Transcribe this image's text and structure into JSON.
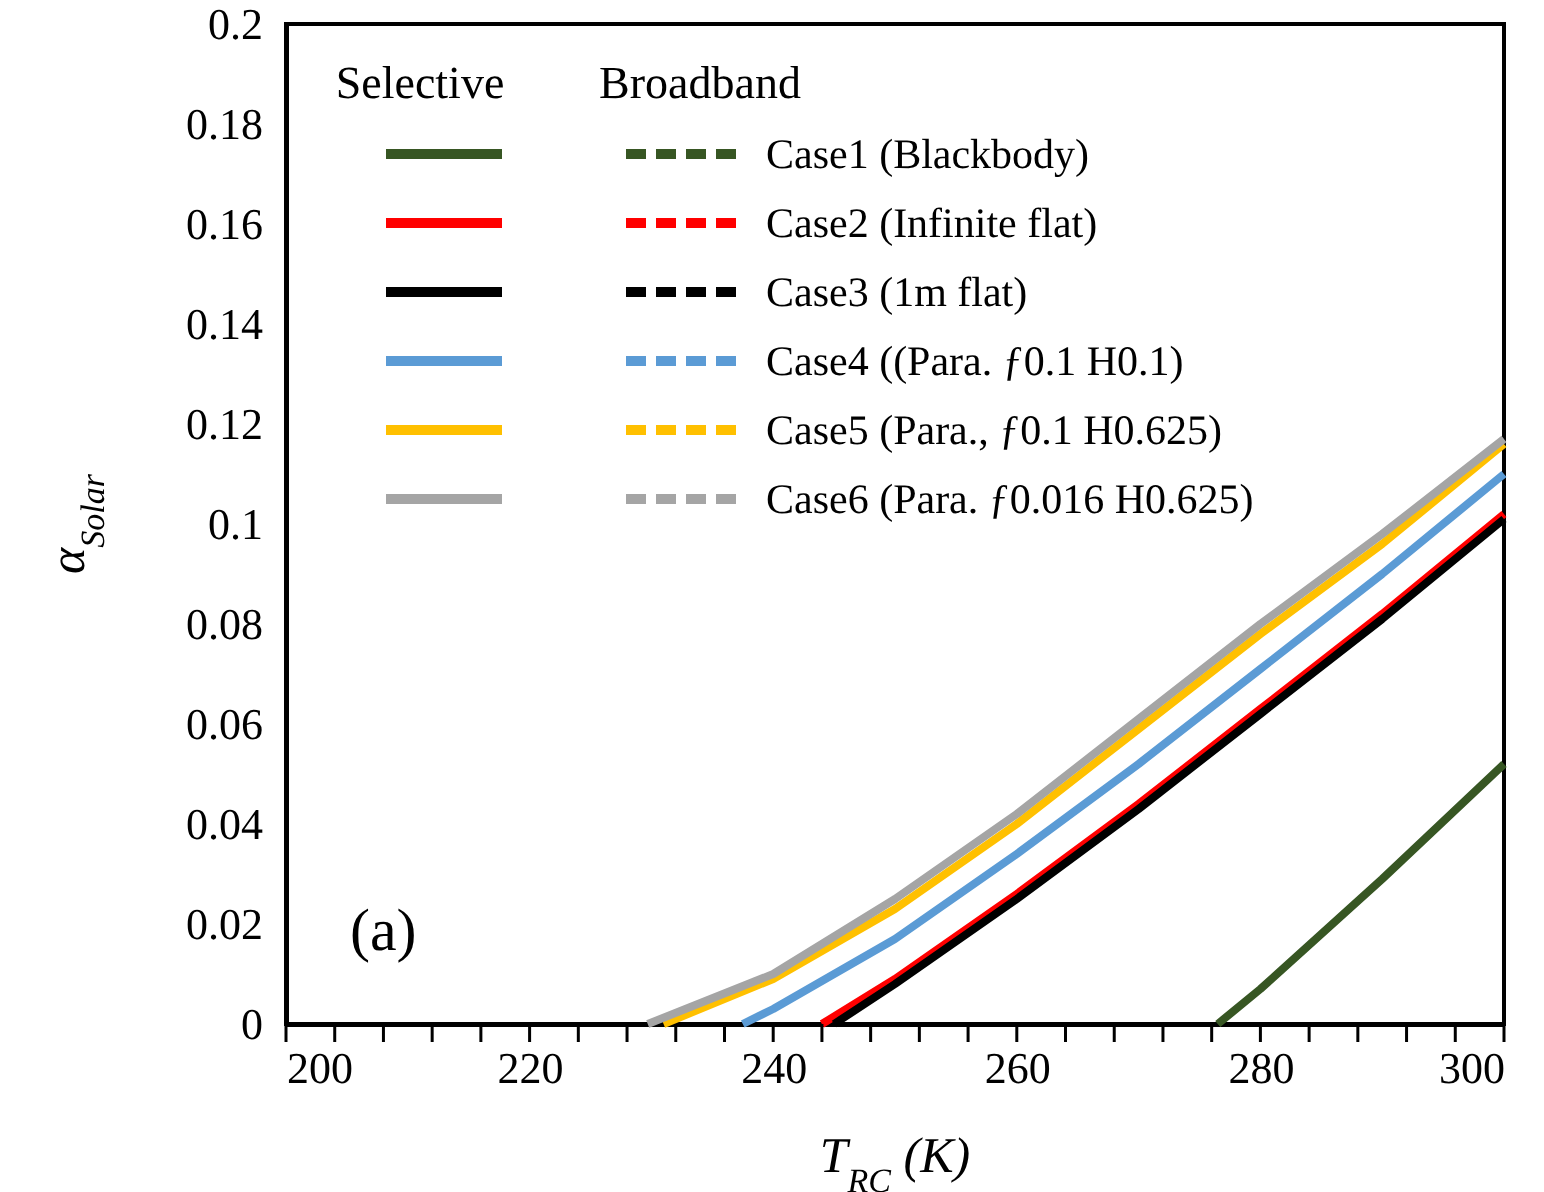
{
  "chart_data": {
    "type": "line",
    "xlabel": "T$_{RC}$ (K)",
    "ylabel": "α$_{Solar}$",
    "xlim": [
      200,
      300
    ],
    "ylim": [
      0,
      0.2
    ],
    "xticks": [
      200,
      {
        "value": 204,
        "label": null
      },
      {
        "value": 208,
        "label": null
      },
      {
        "value": 212,
        "label": null
      },
      {
        "value": 216,
        "label": null
      },
      220,
      {
        "value": 224,
        "label": null
      },
      {
        "value": 228,
        "label": null
      },
      {
        "value": 232,
        "label": null
      },
      {
        "value": 236,
        "label": null
      },
      240,
      {
        "value": 244,
        "label": null
      },
      {
        "value": 248,
        "label": null
      },
      {
        "value": 252,
        "label": null
      },
      {
        "value": 256,
        "label": null
      },
      260,
      {
        "value": 264,
        "label": null
      },
      {
        "value": 268,
        "label": null
      },
      {
        "value": 272,
        "label": null
      },
      {
        "value": 276,
        "label": null
      },
      280,
      {
        "value": 284,
        "label": null
      },
      {
        "value": 288,
        "label": null
      },
      {
        "value": 292,
        "label": null
      },
      {
        "value": 296,
        "label": null
      },
      300
    ],
    "yticks": [
      0,
      0.02,
      0.04,
      0.06,
      0.08,
      0.1,
      0.12,
      0.14,
      0.16,
      0.18,
      0.2
    ],
    "grid": false,
    "legend": "top left",
    "marker": "none",
    "annotations": [
      "Selective",
      "Broadband",
      "(a)"
    ],
    "series": [
      {
        "name": "Case1 (Blackbody)",
        "color": "#375623",
        "line_style": "solid",
        "x": [
          276.5,
          280,
          290,
          300
        ],
        "values": [
          0,
          0.007,
          0.029,
          0.052
        ]
      },
      {
        "name": "Case2 (Infinite flat)",
        "color": "#ff0000",
        "line_style": "solid",
        "x": [
          244,
          250,
          260,
          270,
          280,
          290,
          300
        ],
        "values": [
          0,
          0.009,
          0.026,
          0.044,
          0.063,
          0.082,
          0.102
        ]
      },
      {
        "name": "Case3 (1m flat)",
        "color": "#000000",
        "line_style": "solid",
        "x": [
          245,
          250,
          260,
          270,
          280,
          290,
          300
        ],
        "values": [
          0,
          0.008,
          0.025,
          0.043,
          0.062,
          0.081,
          0.101
        ]
      },
      {
        "name": "Case4 ((Para. ƒ0.1 H0.1)",
        "color": "#5b9bd5",
        "line_style": "solid",
        "x": [
          237.5,
          240,
          250,
          260,
          270,
          280,
          290,
          300
        ],
        "values": [
          0,
          0.003,
          0.017,
          0.034,
          0.052,
          0.071,
          0.09,
          0.11
        ]
      },
      {
        "name": "Case5 (Para., ƒ0.1 H0.625)",
        "color": "#ffc000",
        "line_style": "solid",
        "x": [
          231,
          240,
          250,
          260,
          270,
          280,
          290,
          300
        ],
        "values": [
          0,
          0.009,
          0.023,
          0.04,
          0.059,
          0.078,
          0.096,
          0.116
        ]
      },
      {
        "name": "Case6 (Para. ƒ0.016 H0.625)",
        "color": "#a5a5a5",
        "line_style": "solid",
        "x": [
          229.7,
          240,
          250,
          260,
          270,
          280,
          290,
          300
        ],
        "values": [
          0,
          0.01,
          0.025,
          0.042,
          0.061,
          0.08,
          0.098,
          0.117
        ]
      },
      {
        "color": "#375623",
        "line_style": "dashed",
        "values": [
          null
        ]
      },
      {
        "color": "#ff0000",
        "line_style": "dashed",
        "values": [
          null
        ]
      },
      {
        "color": "#000000",
        "line_style": "dashed",
        "values": [
          null
        ]
      },
      {
        "color": "#5b9bd5",
        "line_style": "dashed",
        "values": [
          null
        ]
      },
      {
        "color": "#ffc000",
        "line_style": "dashed",
        "values": [
          null
        ]
      },
      {
        "color": "#a5a5a5",
        "line_style": "dashed",
        "values": [
          null
        ]
      }
    ]
  }
}
